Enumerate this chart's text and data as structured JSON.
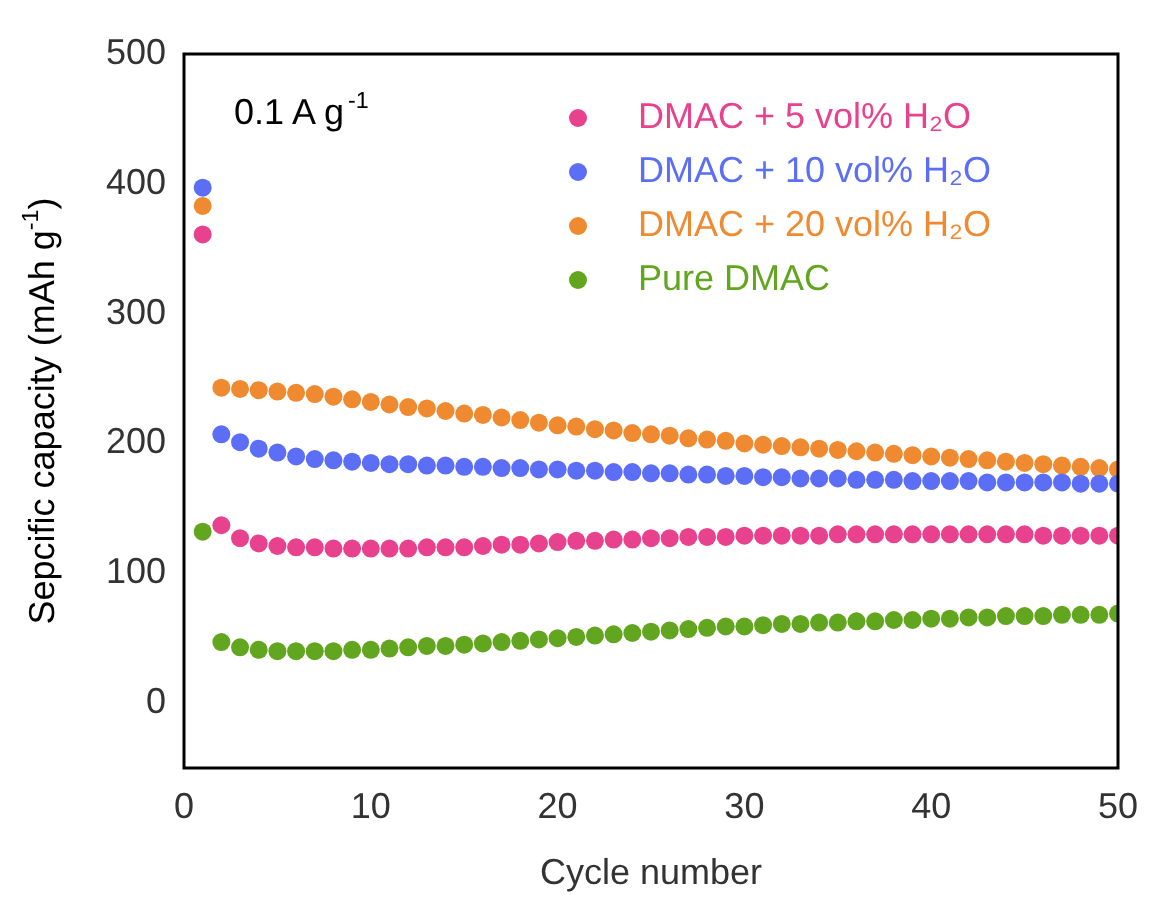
{
  "chart_data": {
    "type": "scatter",
    "xlabel": "Cycle number",
    "ylabel": "Sepcific capacity (mAh g$^{-1}$)",
    "annotations": [
      "0.1 A g$^{-1}$"
    ],
    "x": [
      1,
      2,
      3,
      4,
      5,
      6,
      7,
      8,
      9,
      10,
      11,
      12,
      13,
      14,
      15,
      16,
      17,
      18,
      19,
      20,
      21,
      22,
      23,
      24,
      25,
      26,
      27,
      28,
      29,
      30,
      31,
      32,
      33,
      34,
      35,
      36,
      37,
      38,
      39,
      40,
      41,
      42,
      43,
      44,
      45,
      46,
      47,
      48,
      49,
      50
    ],
    "xlim": [
      0,
      50
    ],
    "xticks": [
      0,
      10,
      20,
      30,
      40,
      50
    ],
    "ylim": [
      -50,
      500
    ],
    "yticks": [
      0,
      100,
      200,
      300,
      400,
      500
    ],
    "marker": "circle",
    "grid": false,
    "legend": "top right",
    "series": [
      {
        "name": "DMAC + 5 vol% H₂O",
        "color": "#e8428e",
        "values": [
          361,
          137,
          127,
          123,
          121,
          120,
          120,
          119,
          119,
          119,
          119,
          119,
          120,
          120,
          120,
          121,
          122,
          122,
          123,
          124,
          125,
          125,
          126,
          126,
          127,
          127,
          128,
          128,
          128,
          129,
          129,
          129,
          129,
          129,
          130,
          130,
          130,
          130,
          130,
          130,
          130,
          130,
          130,
          130,
          130,
          129,
          129,
          129,
          129,
          129
        ]
      },
      {
        "name": "DMAC + 10 vol% H₂O",
        "color": "#5b6ef5",
        "values": [
          397,
          207,
          201,
          196,
          193,
          190,
          188,
          187,
          186,
          185,
          184,
          184,
          183,
          183,
          182,
          182,
          181,
          181,
          180,
          180,
          179,
          179,
          178,
          178,
          177,
          177,
          176,
          176,
          175,
          175,
          174,
          174,
          173,
          173,
          173,
          172,
          172,
          172,
          171,
          171,
          171,
          171,
          170,
          170,
          170,
          170,
          170,
          169,
          169,
          169
        ]
      },
      {
        "name": "DMAC + 20 vol% H₂O",
        "color": "#f08a30",
        "values": [
          383,
          243,
          242,
          241,
          240,
          239,
          238,
          236,
          234,
          232,
          230,
          228,
          227,
          225,
          223,
          222,
          220,
          218,
          216,
          214,
          213,
          211,
          210,
          208,
          207,
          206,
          204,
          203,
          202,
          200,
          199,
          198,
          197,
          196,
          195,
          194,
          193,
          192,
          191,
          190,
          189,
          188,
          187,
          186,
          185,
          184,
          183,
          182,
          181,
          180
        ]
      },
      {
        "name": "Pure DMAC",
        "color": "#62a51e",
        "values": [
          132,
          47,
          43,
          41,
          40,
          40,
          40,
          40,
          41,
          41,
          42,
          43,
          44,
          44,
          45,
          46,
          47,
          48,
          49,
          50,
          51,
          52,
          53,
          54,
          55,
          56,
          57,
          58,
          59,
          59,
          60,
          61,
          61,
          62,
          62,
          63,
          63,
          64,
          64,
          65,
          65,
          66,
          66,
          67,
          67,
          67,
          68,
          68,
          68,
          69
        ]
      }
    ]
  }
}
